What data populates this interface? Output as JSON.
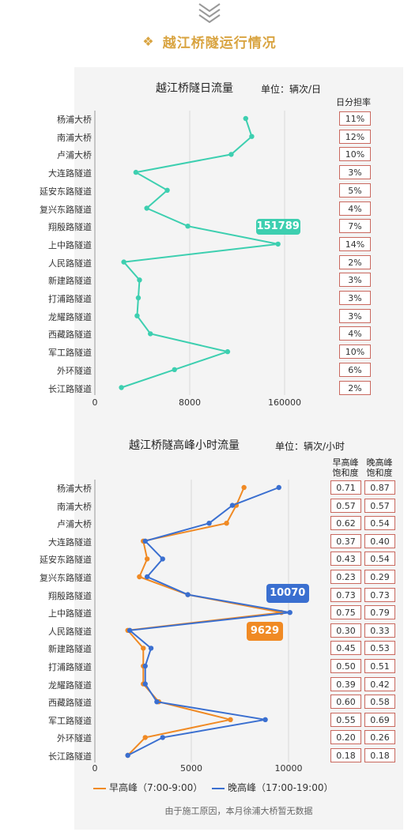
{
  "header": {
    "icon": "tag-icon",
    "title": "越江桥隧运行情况"
  },
  "chart1": {
    "title": "越江桥隧日流量",
    "unit": "单位：辆次/日",
    "share_header": "日分担率",
    "callout": "151789",
    "ticks": [
      "0",
      "8000",
      "160000"
    ],
    "share": [
      "11%",
      "12%",
      "10%",
      "3%",
      "5%",
      "4%",
      "7%",
      "14%",
      "2%",
      "3%",
      "3%",
      "3%",
      "4%",
      "10%",
      "6%",
      "2%"
    ],
    "color": "#3dcfb0"
  },
  "chart2": {
    "title": "越江桥隧高峰小时流量",
    "unit": "单位：辆次/小时",
    "header_am": "早高峰\n饱和度",
    "header_pm": "晚高峰\n饱和度",
    "callout_pm": "10070",
    "callout_am": "9629",
    "ticks": [
      "0",
      "5000",
      "10000"
    ],
    "am_sat": [
      "0.71",
      "0.57",
      "0.62",
      "0.37",
      "0.43",
      "0.23",
      "0.73",
      "0.75",
      "0.30",
      "0.45",
      "0.50",
      "0.39",
      "0.60",
      "0.55",
      "0.20",
      "0.18"
    ],
    "pm_sat": [
      "0.87",
      "0.57",
      "0.54",
      "0.40",
      "0.54",
      "0.29",
      "0.73",
      "0.79",
      "0.33",
      "0.53",
      "0.51",
      "0.42",
      "0.58",
      "0.69",
      "0.26",
      "0.18"
    ],
    "legend_am": "早高峰（7:00-9:00）",
    "legend_pm": "晚高峰（17:00-19:00）",
    "color_am": "#f08a24",
    "color_pm": "#3a6fd0"
  },
  "footer": "由于施工原因，本月徐浦大桥暂无数据",
  "chart_data": [
    {
      "type": "line",
      "title": "越江桥隧日流量",
      "categories": [
        "杨浦大桥",
        "南浦大桥",
        "卢浦大桥",
        "大连路隧道",
        "延安东路隧道",
        "复兴东路隧道",
        "翔殷路隧道",
        "上中路隧道",
        "人民路隧道",
        "新建路隧道",
        "打浦路隧道",
        "龙耀路隧道",
        "西藏路隧道",
        "军工路隧道",
        "外环隧道",
        "长江路隧道"
      ],
      "series": [
        {
          "values": [
            125000,
            130000,
            113000,
            34000,
            60000,
            43000,
            77000,
            151789,
            24000,
            37000,
            36000,
            35000,
            46000,
            110000,
            66000,
            22000
          ]
        }
      ],
      "xticks": [
        "0",
        "8000",
        "160000"
      ]
    },
    {
      "type": "line",
      "title": "越江桥隧高峰小时流量",
      "categories": [
        "杨浦大桥",
        "南浦大桥",
        "卢浦大桥",
        "大连路隧道",
        "延安东路隧道",
        "复兴东路隧道",
        "翔殷路隧道",
        "上中路隧道",
        "人民路隧道",
        "新建路隧道",
        "打浦路隧道",
        "龙耀路隧道",
        "西藏路隧道",
        "军工路隧道",
        "外环隧道",
        "长江路隧道"
      ],
      "series": [
        {
          "name": "早高峰（7:00-9:00）",
          "values": [
            7700,
            7300,
            6800,
            2500,
            2700,
            2300,
            4800,
            9629,
            1700,
            2500,
            2500,
            2500,
            3300,
            7000,
            2600,
            1700
          ]
        },
        {
          "name": "晚高峰（17:00-19:00）",
          "values": [
            9500,
            7100,
            5900,
            2600,
            3500,
            2700,
            4800,
            10070,
            1800,
            2900,
            2600,
            2600,
            3200,
            8800,
            3500,
            1700
          ]
        }
      ],
      "xlim": [
        0,
        10000
      ]
    }
  ]
}
